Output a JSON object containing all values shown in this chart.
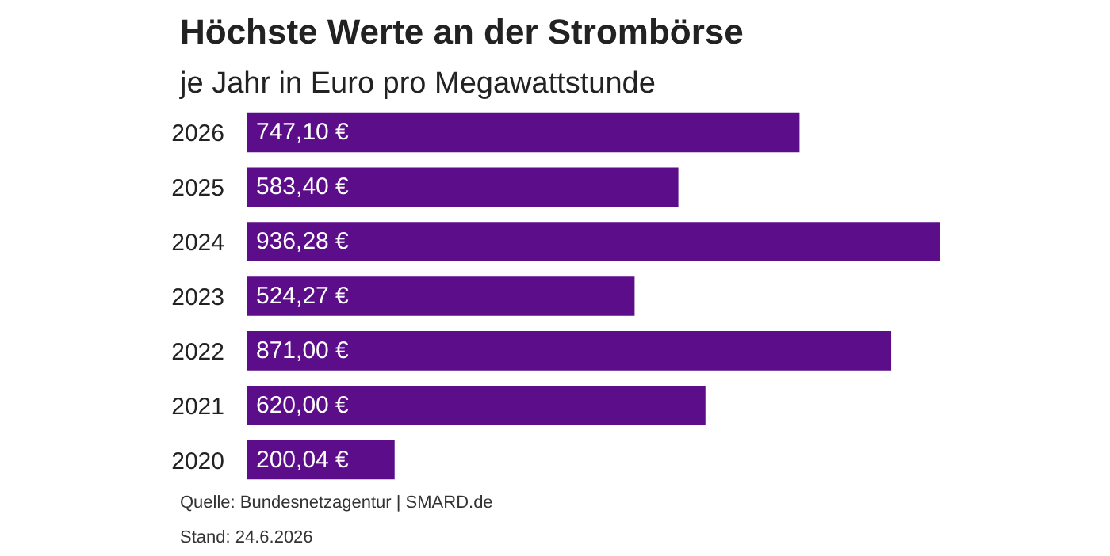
{
  "chart_data": {
    "type": "bar",
    "orientation": "horizontal",
    "title": "Höchste Werte an der Strombörse",
    "subtitle": "je Jahr in Euro pro Megawattstunde",
    "categories": [
      "2026",
      "2025",
      "2024",
      "2023",
      "2022",
      "2021",
      "2020"
    ],
    "values": [
      747.1,
      583.4,
      936.28,
      524.27,
      871.0,
      620.0,
      200.04
    ],
    "value_labels": [
      "747,10 €",
      "583,40 €",
      "936,28 €",
      "524,27 €",
      "871,00 €",
      "620,00 €",
      "200,04 €"
    ],
    "color": "#5b0d8a",
    "annotations": [
      "Stand: 24.6.2026",
      "Quelle: Bundesnetzagentur | SMARD.de"
    ]
  }
}
